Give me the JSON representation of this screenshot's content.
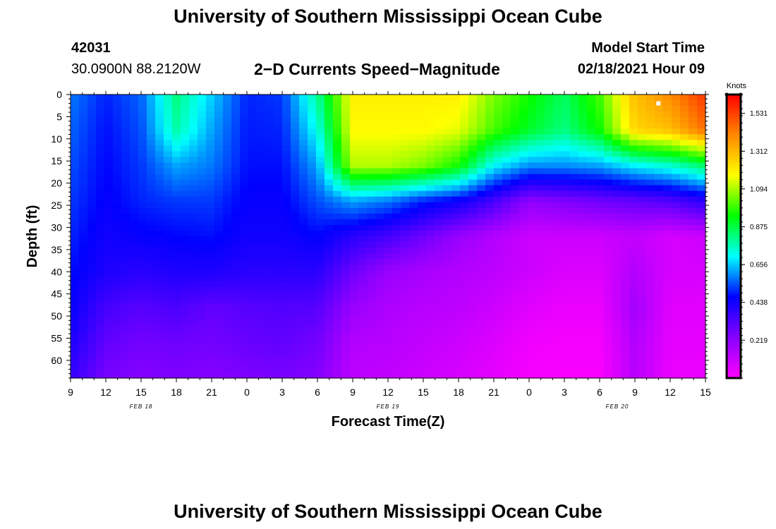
{
  "title_top": "University of Southern Mississippi Ocean Cube",
  "title_bottom": "University of Southern Mississippi Ocean Cube",
  "station": {
    "id": "42031",
    "coords": "30.0900N 88.2120W"
  },
  "model": {
    "label": "Model Start Time",
    "time": "02/18/2021 Hour 09"
  },
  "plot_title": "2−D Currents Speed−Magnitude",
  "chart_data": {
    "type": "heatmap",
    "title": "2-D Currents Speed-Magnitude",
    "xlabel": "Forecast Time(Z)",
    "ylabel": "Depth (ft)",
    "x_hours": [
      0,
      3,
      6,
      9,
      12,
      15,
      18,
      21,
      24,
      27,
      30,
      33,
      36,
      39,
      42,
      45,
      48,
      51,
      54
    ],
    "x_tick_labels": [
      "9",
      "12",
      "15",
      "18",
      "21",
      "0",
      "3",
      "6",
      "9",
      "12",
      "15",
      "18",
      "21",
      "0",
      "3",
      "6",
      "9",
      "12",
      "15"
    ],
    "x_tick_positions": [
      0,
      3,
      6,
      9,
      12,
      15,
      18,
      21,
      24,
      27,
      30,
      33,
      36,
      39,
      42,
      45,
      48,
      51,
      54
    ],
    "x_range": [
      0,
      54
    ],
    "date_labels": [
      {
        "text": "FEB 18",
        "hour": 6
      },
      {
        "text": "FEB 19",
        "hour": 27
      },
      {
        "text": "FEB 20",
        "hour": 46.5
      }
    ],
    "y_ticks": [
      0,
      5,
      10,
      15,
      20,
      25,
      30,
      35,
      40,
      45,
      50,
      55,
      60
    ],
    "ylim": [
      0,
      64
    ],
    "depths": [
      0,
      8,
      16,
      24,
      32,
      40,
      48,
      56,
      64
    ],
    "values": [
      [
        0.58,
        0.5,
        0.56,
        0.82,
        0.66,
        0.5,
        0.52,
        0.8,
        1.2,
        1.2,
        1.2,
        1.2,
        1.05,
        0.95,
        0.85,
        1.0,
        1.3,
        1.4,
        1.55
      ],
      [
        0.56,
        0.48,
        0.54,
        0.78,
        0.62,
        0.49,
        0.5,
        0.72,
        1.18,
        1.18,
        1.18,
        1.15,
        1.0,
        0.9,
        0.82,
        0.95,
        1.25,
        1.3,
        1.45
      ],
      [
        0.54,
        0.47,
        0.52,
        0.62,
        0.58,
        0.48,
        0.48,
        0.62,
        1.1,
        1.1,
        1.05,
        0.95,
        0.7,
        0.6,
        0.6,
        0.62,
        0.7,
        0.75,
        0.85
      ],
      [
        0.52,
        0.46,
        0.5,
        0.52,
        0.52,
        0.46,
        0.46,
        0.54,
        0.62,
        0.58,
        0.5,
        0.45,
        0.35,
        0.22,
        0.25,
        0.28,
        0.3,
        0.33,
        0.4
      ],
      [
        0.5,
        0.44,
        0.46,
        0.47,
        0.48,
        0.44,
        0.44,
        0.47,
        0.4,
        0.35,
        0.28,
        0.2,
        0.15,
        0.1,
        0.1,
        0.1,
        0.12,
        0.08,
        0.1
      ],
      [
        0.48,
        0.42,
        0.4,
        0.42,
        0.42,
        0.4,
        0.4,
        0.4,
        0.28,
        0.2,
        0.17,
        0.15,
        0.13,
        0.1,
        0.07,
        0.07,
        0.15,
        0.08,
        0.08
      ],
      [
        0.46,
        0.35,
        0.32,
        0.34,
        0.3,
        0.32,
        0.33,
        0.32,
        0.2,
        0.16,
        0.14,
        0.13,
        0.1,
        0.06,
        0.04,
        0.04,
        0.18,
        0.06,
        0.06
      ],
      [
        0.42,
        0.3,
        0.27,
        0.28,
        0.27,
        0.29,
        0.3,
        0.27,
        0.15,
        0.14,
        0.12,
        0.1,
        0.07,
        0.03,
        0.02,
        0.02,
        0.15,
        0.05,
        0.05
      ],
      [
        0.38,
        0.26,
        0.24,
        0.25,
        0.24,
        0.25,
        0.26,
        0.24,
        0.13,
        0.12,
        0.1,
        0.08,
        0.05,
        0.02,
        0.01,
        0.01,
        0.14,
        0.04,
        0.04
      ]
    ],
    "colorbar": {
      "label": "Knots",
      "ticks": [
        "1.531",
        "1.312",
        "1.094",
        "0.875",
        "0.656",
        "0.438",
        "0.219"
      ],
      "tick_values": [
        1.531,
        1.312,
        1.094,
        0.875,
        0.656,
        0.438,
        0.219
      ],
      "range": [
        0,
        1.64
      ],
      "colors": [
        "#ff00ff",
        "#8800ff",
        "#0000ff",
        "#00ffff",
        "#00ff00",
        "#ffff00",
        "#ff8800",
        "#ff0000"
      ]
    },
    "marker": {
      "hour": 50,
      "depth": 2
    }
  }
}
